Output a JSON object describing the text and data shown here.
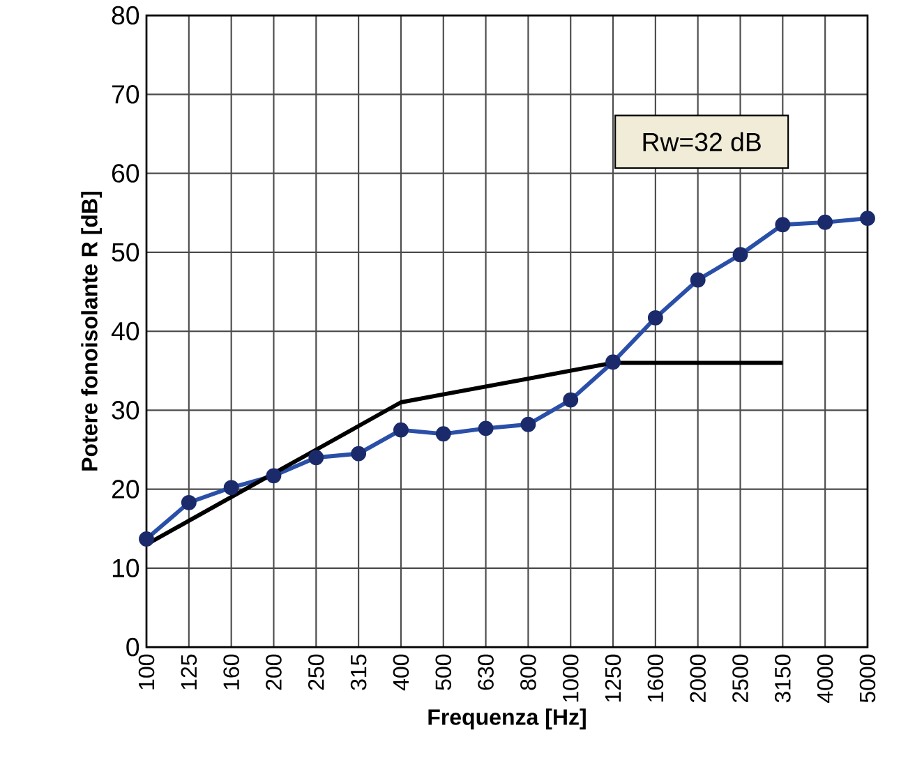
{
  "chart_data": {
    "type": "line",
    "xlabel": "Frequenza [Hz]",
    "ylabel": "Potere fonoisolante R [dB]",
    "categories": [
      "100",
      "125",
      "160",
      "200",
      "250",
      "315",
      "400",
      "500",
      "630",
      "800",
      "1000",
      "1250",
      "1600",
      "2000",
      "2500",
      "3150",
      "4000",
      "5000"
    ],
    "series": [
      {
        "color": "#2a4fa8",
        "marker": "circle",
        "line_style": "solid",
        "values": [
          13.7,
          18.3,
          20.2,
          21.7,
          24.0,
          24.5,
          27.5,
          27.0,
          27.7,
          28.2,
          31.3,
          36.1,
          41.7,
          46.5,
          49.7,
          53.5,
          53.8,
          54.3
        ]
      },
      {
        "color": "#000000",
        "marker": "none",
        "line_style": "solid",
        "values": [
          13,
          16,
          19,
          22,
          25,
          28,
          31,
          32,
          33,
          34,
          35,
          36,
          36,
          36,
          36,
          36,
          null,
          null
        ]
      }
    ],
    "ylim": [
      0,
      80
    ],
    "yticks": [
      0,
      10,
      20,
      30,
      40,
      50,
      60,
      70,
      80
    ],
    "grid": true,
    "annotations": [
      "Rw=32 dB"
    ]
  }
}
